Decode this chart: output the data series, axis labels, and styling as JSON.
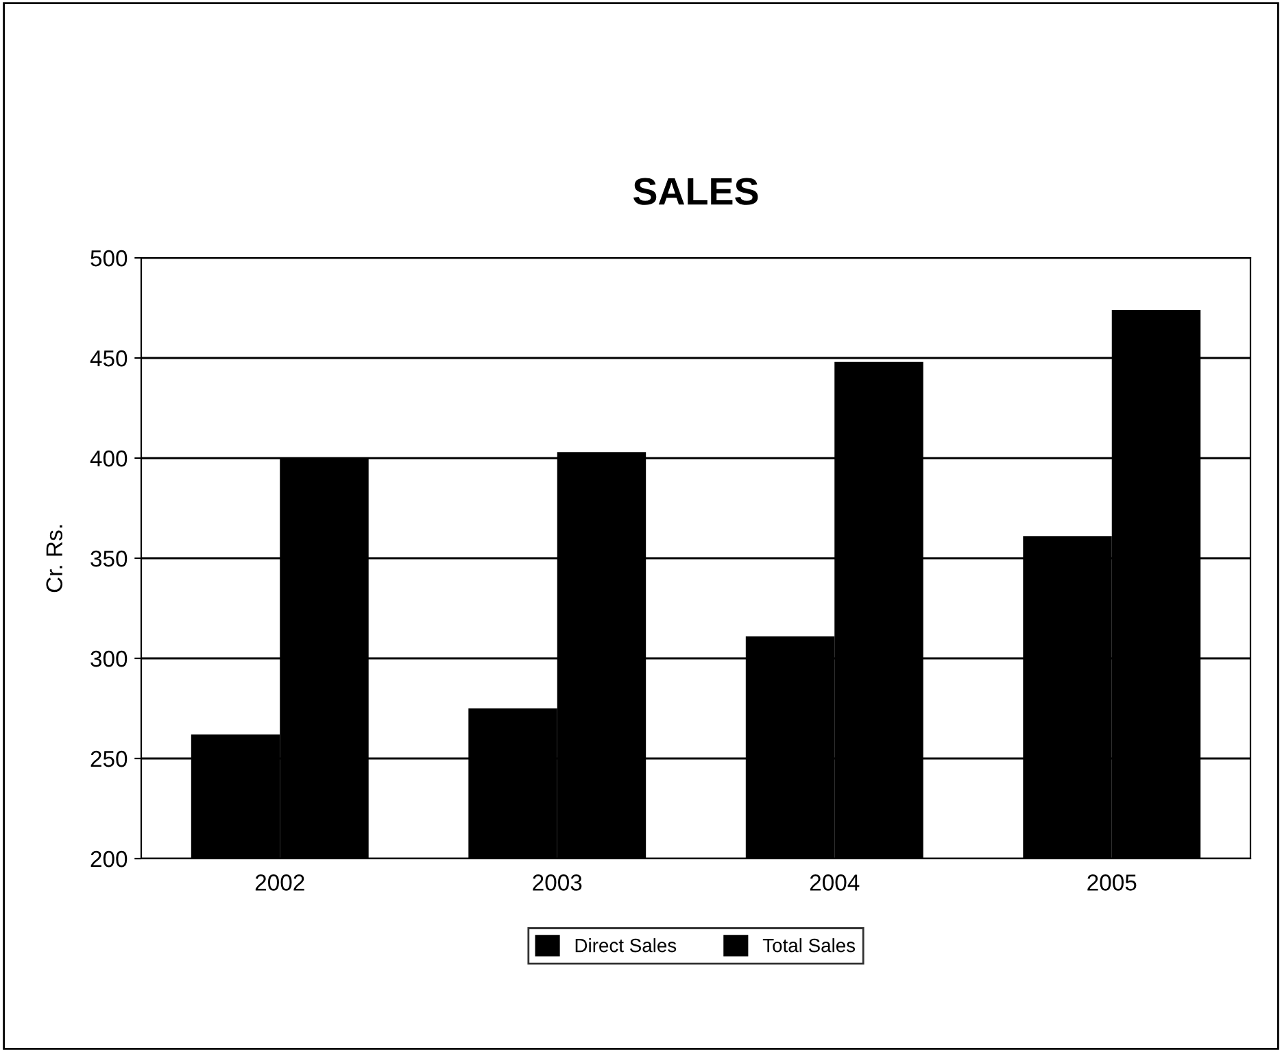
{
  "chart_data": {
    "type": "bar",
    "title": "SALES",
    "ylabel": "Cr. Rs.",
    "categories": [
      "2002",
      "2003",
      "2004",
      "2005"
    ],
    "series": [
      {
        "name": "Direct Sales",
        "color": "#000000",
        "values": [
          262,
          275,
          311,
          361
        ]
      },
      {
        "name": "Total Sales",
        "color": "#000000",
        "values": [
          400,
          403,
          448,
          474
        ]
      }
    ],
    "ylim": [
      200,
      500
    ],
    "yticks": [
      200,
      250,
      300,
      350,
      400,
      450,
      500
    ],
    "grid": "y",
    "legend": "bottom"
  }
}
